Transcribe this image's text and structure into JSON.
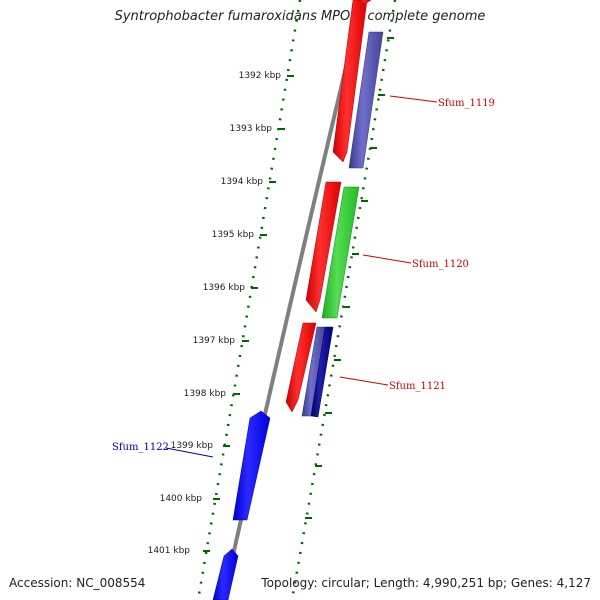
{
  "title": "Syntrophobacter fumaroxidans MPOB, complete genome",
  "footer": {
    "accession": "Accession: NC_008554",
    "summary": "Topology: circular; Length: 4,990,251 bp; Genes: 4,127"
  },
  "ticks": [
    {
      "label": "1392 kbp"
    },
    {
      "label": "1393 kbp"
    },
    {
      "label": "1394 kbp"
    },
    {
      "label": "1395 kbp"
    },
    {
      "label": "1396 kbp"
    },
    {
      "label": "1397 kbp"
    },
    {
      "label": "1398 kbp"
    },
    {
      "label": "1399 kbp"
    },
    {
      "label": "1400 kbp"
    },
    {
      "label": "1401 kbp"
    }
  ],
  "genes": [
    {
      "label": "Sfum_1119",
      "color": "#cc0000"
    },
    {
      "label": "Sfum_1120",
      "color": "#cc0000"
    },
    {
      "label": "Sfum_1121",
      "color": "#cc0000"
    },
    {
      "label": "Sfum_1122",
      "color": "#0000aa"
    }
  ],
  "colors": {
    "forward_cds": "#ff0000",
    "reverse_cds": "#0000ff",
    "orf_green": "#33cc33",
    "orf_slate": "#4a4a99",
    "orf_navy": "#000080",
    "backbone": "#808080",
    "ruler": "#006600"
  }
}
